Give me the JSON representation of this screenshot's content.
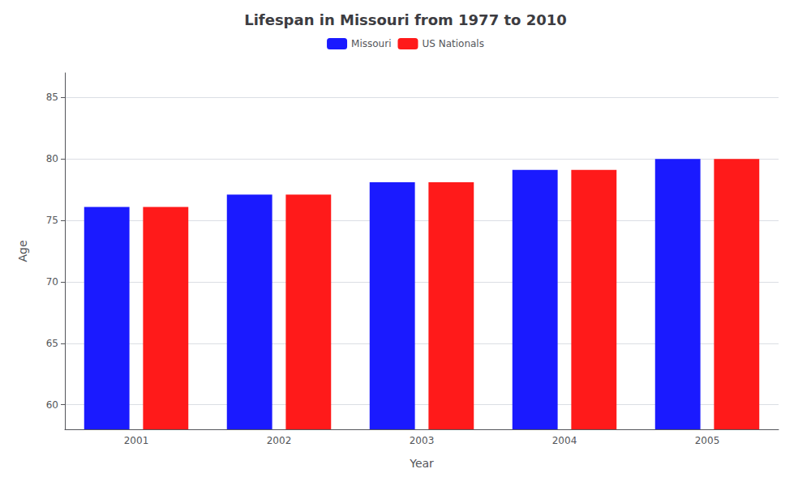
{
  "chart_data": {
    "type": "bar",
    "title": "Lifespan in Missouri from 1977 to 2010",
    "x_label": "Year",
    "y_label": "Age",
    "categories": [
      "2001",
      "2002",
      "2003",
      "2004",
      "2005"
    ],
    "series": [
      {
        "name": "Missouri",
        "color": "#1a1aff",
        "values": [
          76.1,
          77.1,
          78.1,
          79.1,
          80.0
        ]
      },
      {
        "name": "US Nationals",
        "color": "#ff1a1a",
        "values": [
          76.1,
          77.1,
          78.1,
          79.1,
          80.0
        ]
      }
    ],
    "ylim": [
      58,
      87
    ],
    "yticks": [
      60,
      65,
      70,
      75,
      80,
      85
    ],
    "grid": true,
    "legend": "top"
  }
}
